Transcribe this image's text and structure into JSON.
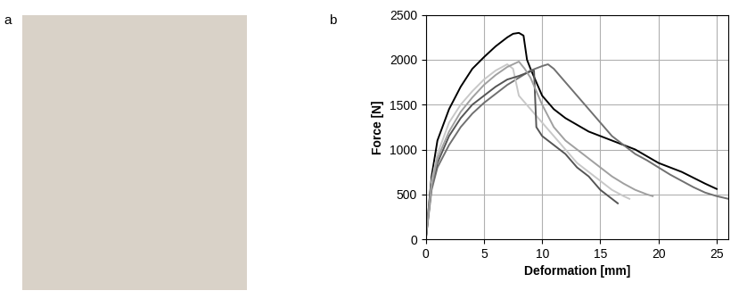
{
  "panel_labels": [
    "a",
    "b"
  ],
  "chart_data": {
    "type": "line",
    "x_label": "Deformation [mm]",
    "y_label": "Force [N]",
    "xlim": [
      0,
      26
    ],
    "xticks": [
      0,
      5,
      10,
      15,
      20,
      25
    ],
    "ylim": [
      0,
      2500
    ],
    "yticks": [
      0,
      500,
      1000,
      1500,
      2000,
      2500
    ],
    "grid": true,
    "series": [
      {
        "color": "#000000",
        "x": [
          0,
          0.5,
          1,
          2,
          3,
          4,
          5,
          6,
          7,
          7.5,
          8,
          8.4,
          8.7,
          9,
          9.5,
          10,
          11,
          12,
          14,
          16,
          18,
          20,
          22,
          24,
          25
        ],
        "values": [
          0,
          700,
          1100,
          1450,
          1700,
          1900,
          2030,
          2150,
          2250,
          2290,
          2300,
          2270,
          2000,
          1900,
          1750,
          1600,
          1450,
          1350,
          1200,
          1100,
          1000,
          850,
          750,
          620,
          560
        ]
      },
      {
        "color": "#707070",
        "x": [
          0,
          0.5,
          1,
          2,
          3,
          4,
          5,
          6,
          7,
          8,
          9,
          10,
          10.5,
          11,
          12,
          13,
          14,
          15,
          16,
          17,
          18,
          19,
          20,
          21,
          22,
          23,
          24,
          25,
          26
        ],
        "values": [
          0,
          550,
          800,
          1050,
          1250,
          1400,
          1520,
          1620,
          1720,
          1800,
          1880,
          1930,
          1950,
          1900,
          1750,
          1600,
          1450,
          1300,
          1150,
          1050,
          950,
          880,
          800,
          720,
          650,
          580,
          520,
          480,
          450
        ]
      },
      {
        "color": "#c8c8c8",
        "x": [
          0,
          0.5,
          1,
          2,
          3,
          4,
          5,
          6,
          7,
          7.5,
          8,
          9,
          10,
          11,
          12,
          13,
          14,
          15,
          16,
          17,
          17.5
        ],
        "values": [
          0,
          650,
          950,
          1300,
          1500,
          1650,
          1780,
          1880,
          1950,
          1900,
          1600,
          1450,
          1300,
          1150,
          1000,
          850,
          750,
          650,
          550,
          480,
          450
        ]
      },
      {
        "color": "#555555",
        "x": [
          0,
          0.5,
          1,
          2,
          3,
          4,
          5,
          6,
          7,
          8,
          9,
          9.3,
          9.5,
          10,
          11,
          12,
          13,
          14,
          15,
          16,
          16.5
        ],
        "values": [
          0,
          600,
          850,
          1150,
          1350,
          1500,
          1600,
          1700,
          1780,
          1820,
          1870,
          1880,
          1250,
          1150,
          1050,
          950,
          800,
          700,
          550,
          450,
          400
        ]
      },
      {
        "color": "#a0a0a0",
        "x": [
          0,
          0.5,
          1,
          2,
          3,
          4,
          5,
          6,
          7,
          8,
          8.5,
          9,
          10,
          11,
          12,
          13,
          14,
          15,
          16,
          17,
          18,
          19,
          19.5
        ],
        "values": [
          0,
          600,
          900,
          1200,
          1420,
          1580,
          1720,
          1830,
          1920,
          1980,
          1900,
          1800,
          1500,
          1250,
          1100,
          1000,
          900,
          800,
          700,
          620,
          550,
          500,
          480
        ]
      }
    ]
  }
}
